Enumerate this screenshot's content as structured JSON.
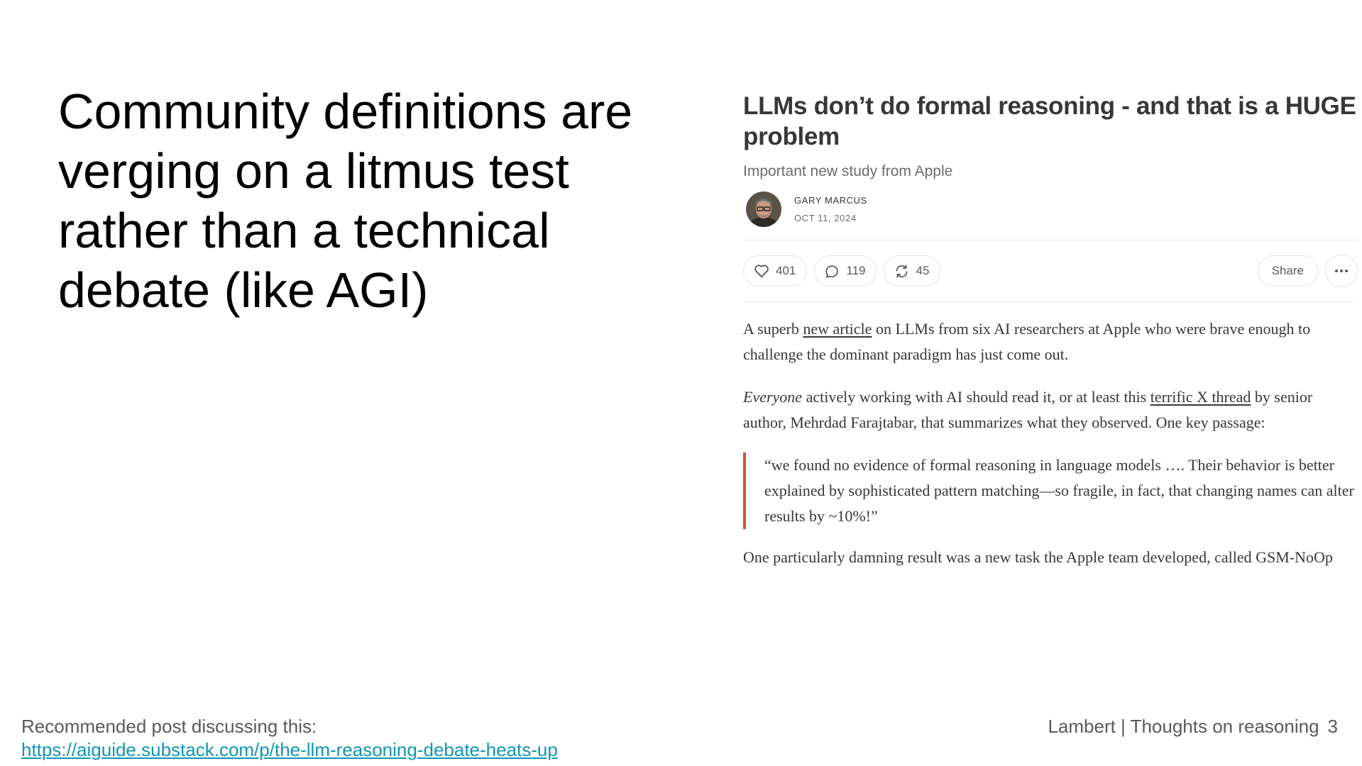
{
  "slide": {
    "heading": "Community definitions are verging on a litmus test rather than a technical debate (like AGI)"
  },
  "article": {
    "title": "LLMs don’t do formal reasoning - and that is a HUGE problem",
    "subtitle": "Important new study from Apple",
    "author": "GARY MARCUS",
    "date": "OCT 11, 2024",
    "likes": "401",
    "comments": "119",
    "restacks": "45",
    "share_label": "Share",
    "p1_before": "A superb ",
    "p1_link": "new article",
    "p1_after": " on LLMs from six AI researchers at Apple who were brave enough to challenge the dominant paradigm has just come out.",
    "p2_italic": "Everyone",
    "p2_before": " actively working with AI should read it, or at least this ",
    "p2_link": "terrific X thread",
    "p2_after": " by senior author, Mehrdad Farajtabar, that summarizes what they observed. One key passage:",
    "quote": "“we found no evidence of formal reasoning in language models …. Their behavior is better explained by sophisticated pattern matching—so fragile, in fact, that changing names can alter results by ~10%!”",
    "p3": "One particularly damning result was a new task the Apple team developed, called GSM-NoOp"
  },
  "footer": {
    "recommend_text": "Recommended post discussing this:",
    "recommend_link": "https://aiguide.substack.com/p/the-llm-reasoning-debate-heats-up",
    "credit": "Lambert | Thoughts on reasoning",
    "page_number": "3"
  },
  "colors": {
    "quote_bar": "#d94f2b",
    "link": "#0f96b2"
  },
  "icons": {
    "likes": "heart-icon",
    "comments": "comment-bubble-icon",
    "restacks": "restack-icon",
    "more": "ellipsis-icon"
  }
}
